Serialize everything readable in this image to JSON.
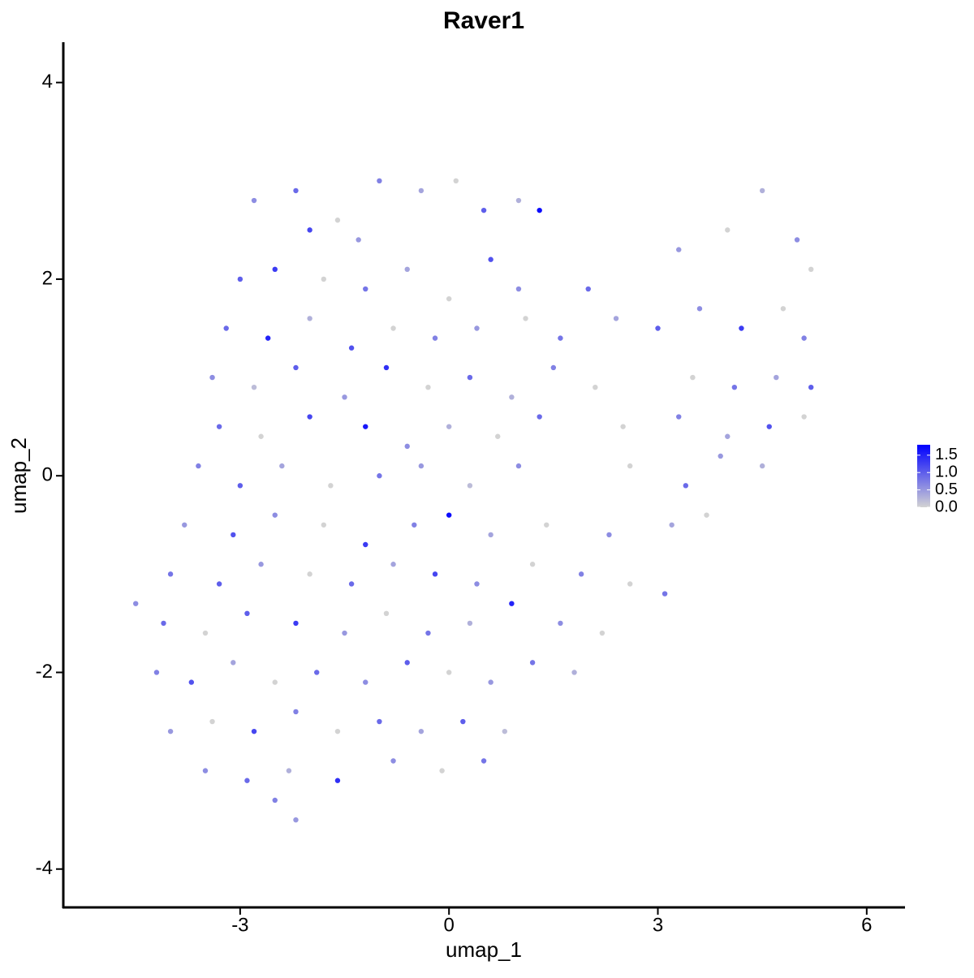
{
  "chart_data": {
    "type": "scatter",
    "title": "Raver1",
    "x_label": "umap_1",
    "y_label": "umap_2",
    "x": [
      -2.8,
      -2.2,
      -1.6,
      -1.0,
      -0.4,
      0.1,
      0.5,
      1.0,
      1.3,
      -2.0,
      -1.3,
      -3.0,
      -2.5,
      -1.8,
      -1.2,
      -0.6,
      0.0,
      0.6,
      1.0,
      2.0,
      3.3,
      4.0,
      4.5,
      5.0,
      5.2,
      -3.2,
      -2.6,
      -2.0,
      -1.4,
      -0.8,
      -0.2,
      0.4,
      1.1,
      1.6,
      2.4,
      3.0,
      3.6,
      4.2,
      4.8,
      5.1,
      -3.4,
      -2.8,
      -2.2,
      -1.5,
      -0.9,
      -0.3,
      0.3,
      0.9,
      1.5,
      2.1,
      3.5,
      4.1,
      4.7,
      5.2,
      -3.3,
      -2.7,
      -2.0,
      -1.2,
      -0.6,
      0.0,
      0.7,
      1.3,
      2.5,
      3.3,
      4.0,
      4.6,
      5.1,
      -3.6,
      -3.0,
      -2.4,
      -1.7,
      -1.0,
      -0.4,
      0.3,
      1.0,
      2.6,
      3.4,
      3.9,
      4.5,
      -3.8,
      -3.1,
      -2.5,
      -1.8,
      -1.2,
      -0.5,
      0.0,
      0.6,
      1.4,
      2.3,
      3.2,
      3.7,
      -4.0,
      -3.3,
      -2.7,
      -2.0,
      -1.4,
      -0.8,
      -0.2,
      0.4,
      1.2,
      1.9,
      2.6,
      3.1,
      -4.5,
      -4.1,
      -3.5,
      -2.9,
      -2.2,
      -1.5,
      -0.9,
      -0.3,
      0.3,
      0.9,
      1.6,
      2.2,
      -4.2,
      -3.7,
      -3.1,
      -2.5,
      -1.9,
      -1.2,
      -0.6,
      0.0,
      0.6,
      1.2,
      1.8,
      -4.0,
      -3.4,
      -2.8,
      -2.2,
      -1.6,
      -1.0,
      -0.4,
      0.2,
      0.8,
      -3.5,
      -2.9,
      -2.3,
      -1.6,
      -0.8,
      -0.1,
      0.5,
      -2.5,
      -2.2
    ],
    "y": [
      2.8,
      2.9,
      2.6,
      3.0,
      2.9,
      3.0,
      2.7,
      2.8,
      2.7,
      2.5,
      2.4,
      2.0,
      2.1,
      2.0,
      1.9,
      2.1,
      1.8,
      2.2,
      1.9,
      1.9,
      2.3,
      2.5,
      2.9,
      2.4,
      2.1,
      1.5,
      1.4,
      1.6,
      1.3,
      1.5,
      1.4,
      1.5,
      1.6,
      1.4,
      1.6,
      1.5,
      1.7,
      1.5,
      1.7,
      1.4,
      1.0,
      0.9,
      1.1,
      0.8,
      1.1,
      0.9,
      1.0,
      0.8,
      1.1,
      0.9,
      1.0,
      0.9,
      1.0,
      0.9,
      0.5,
      0.4,
      0.6,
      0.5,
      0.3,
      0.5,
      0.4,
      0.6,
      0.5,
      0.6,
      0.4,
      0.5,
      0.6,
      0.1,
      -0.1,
      0.1,
      -0.1,
      0.0,
      0.1,
      -0.1,
      0.1,
      0.1,
      -0.1,
      0.2,
      0.1,
      -0.5,
      -0.6,
      -0.4,
      -0.5,
      -0.7,
      -0.5,
      -0.4,
      -0.6,
      -0.5,
      -0.6,
      -0.5,
      -0.4,
      -1.0,
      -1.1,
      -0.9,
      -1.0,
      -1.1,
      -0.9,
      -1.0,
      -1.1,
      -0.9,
      -1.0,
      -1.1,
      -1.2,
      -1.3,
      -1.5,
      -1.6,
      -1.4,
      -1.5,
      -1.6,
      -1.4,
      -1.6,
      -1.5,
      -1.3,
      -1.5,
      -1.6,
      -2.0,
      -2.1,
      -1.9,
      -2.1,
      -2.0,
      -2.1,
      -1.9,
      -2.0,
      -2.1,
      -1.9,
      -2.0,
      -2.6,
      -2.5,
      -2.6,
      -2.4,
      -2.6,
      -2.5,
      -2.6,
      -2.5,
      -2.6,
      -3.0,
      -3.1,
      -3.0,
      -3.1,
      -2.9,
      -3.0,
      -2.9,
      -3.3,
      -3.5
    ],
    "values": [
      0.6,
      0.9,
      0,
      0.7,
      0.4,
      0,
      1.0,
      0.3,
      1.7,
      1.2,
      0.5,
      1.0,
      1.3,
      0,
      0.8,
      0.4,
      0,
      1.1,
      0.6,
      0.9,
      0.5,
      0,
      0.3,
      0.6,
      0,
      0.9,
      1.5,
      0.3,
      1.1,
      0,
      0.7,
      0.5,
      0,
      0.8,
      0.4,
      1.0,
      0.6,
      1.3,
      0,
      0.7,
      0.6,
      0.2,
      1.0,
      0.5,
      1.4,
      0,
      0.9,
      0.3,
      0.7,
      0,
      0,
      0.8,
      0.4,
      1.0,
      0.9,
      0,
      1.2,
      1.6,
      0.6,
      0.3,
      0,
      0.9,
      0,
      0.7,
      0.4,
      1.1,
      0,
      0.7,
      1.0,
      0.4,
      0,
      0.8,
      0.5,
      0.2,
      0.6,
      0,
      0.9,
      0.5,
      0.3,
      0.5,
      1.1,
      0.6,
      0,
      1.3,
      0.7,
      1.7,
      0.4,
      0,
      0.6,
      0.4,
      0,
      0.8,
      1.0,
      0.5,
      0,
      0.9,
      0.4,
      1.2,
      0.6,
      0,
      0.7,
      0,
      0.8,
      0.6,
      0.9,
      0,
      1.0,
      1.3,
      0.5,
      0,
      0.8,
      0.3,
      1.5,
      0.6,
      0,
      0.7,
      1.1,
      0.4,
      0,
      0.9,
      0.6,
      1.0,
      0,
      0.5,
      0.8,
      0.3,
      0.5,
      0,
      1.2,
      0.7,
      0,
      0.9,
      0.4,
      1.0,
      0.2,
      0.6,
      0.9,
      0.3,
      1.4,
      0.6,
      0,
      0.8,
      0.7,
      0.5
    ],
    "xlim": [
      -5.54,
      6.55
    ],
    "xticks": [
      -3,
      0,
      3,
      6
    ],
    "ylim": [
      -4.39,
      4.41
    ],
    "yticks": [
      -4,
      -2,
      0,
      2,
      4
    ],
    "color_low": "#d3d3d3",
    "color_high": "#0000ff",
    "color_lim": [
      0,
      1.8
    ],
    "color_ticks": [
      {
        "value": 0,
        "label": "0.0"
      },
      {
        "value": 0.5,
        "label": "0.5"
      },
      {
        "value": 1,
        "label": "1.0"
      },
      {
        "value": 1.5,
        "label": "1.5"
      }
    ]
  }
}
